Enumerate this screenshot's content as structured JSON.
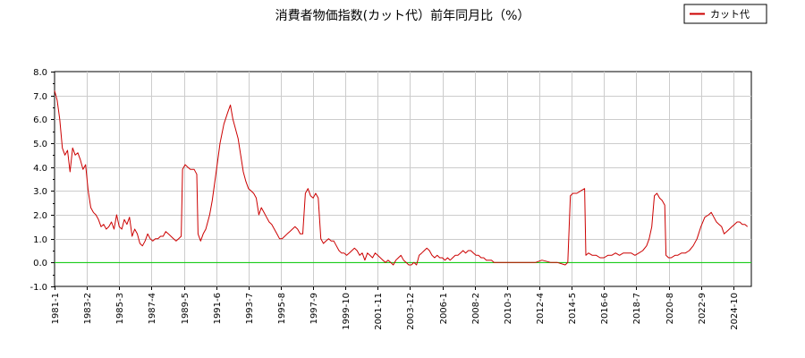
{
  "chart_data": {
    "type": "line",
    "title": "消費者物価指数(カット代）前年同月比（%）",
    "xlabel": "",
    "ylabel": "",
    "ylim": [
      -1.0,
      8.0
    ],
    "yticks": [
      "-1.0",
      "0.0",
      "1.0",
      "2.0",
      "3.0",
      "4.0",
      "5.0",
      "6.0",
      "7.0",
      "8.0"
    ],
    "xlim": [
      "1981-01",
      "2025-12"
    ],
    "xticks": [
      "1981-1",
      "1983-2",
      "1985-3",
      "1987-4",
      "1989-5",
      "1991-6",
      "1993-7",
      "1995-8",
      "1997-9",
      "1999-10",
      "2001-11",
      "2003-12",
      "2006-1",
      "2008-2",
      "2010-3",
      "2012-4",
      "2014-5",
      "2016-6",
      "2018-7",
      "2020-8",
      "2022-9",
      "2024-10"
    ],
    "grid": true,
    "legend_position": "top-right",
    "reference_line": {
      "y": 0.0,
      "color": "#00cc00"
    },
    "series": [
      {
        "name": "カット代",
        "color": "#cc0000",
        "points": [
          [
            "1981-01",
            7.2
          ],
          [
            "1981-03",
            6.8
          ],
          [
            "1981-05",
            6.0
          ],
          [
            "1981-07",
            4.8
          ],
          [
            "1981-09",
            4.5
          ],
          [
            "1981-11",
            4.7
          ],
          [
            "1982-01",
            3.8
          ],
          [
            "1982-03",
            4.8
          ],
          [
            "1982-05",
            4.5
          ],
          [
            "1982-07",
            4.6
          ],
          [
            "1982-09",
            4.3
          ],
          [
            "1982-11",
            3.9
          ],
          [
            "1983-01",
            4.1
          ],
          [
            "1983-03",
            3.0
          ],
          [
            "1983-05",
            2.3
          ],
          [
            "1983-07",
            2.1
          ],
          [
            "1983-09",
            2.0
          ],
          [
            "1983-11",
            1.8
          ],
          [
            "1984-01",
            1.5
          ],
          [
            "1984-03",
            1.6
          ],
          [
            "1984-05",
            1.4
          ],
          [
            "1984-07",
            1.5
          ],
          [
            "1984-09",
            1.7
          ],
          [
            "1984-11",
            1.4
          ],
          [
            "1985-01",
            2.0
          ],
          [
            "1985-03",
            1.5
          ],
          [
            "1985-05",
            1.4
          ],
          [
            "1985-07",
            1.8
          ],
          [
            "1985-09",
            1.6
          ],
          [
            "1985-11",
            1.9
          ],
          [
            "1986-01",
            1.1
          ],
          [
            "1986-03",
            1.4
          ],
          [
            "1986-05",
            1.2
          ],
          [
            "1986-07",
            0.8
          ],
          [
            "1986-09",
            0.7
          ],
          [
            "1986-11",
            0.9
          ],
          [
            "1987-01",
            1.2
          ],
          [
            "1987-03",
            1.0
          ],
          [
            "1987-05",
            0.9
          ],
          [
            "1987-07",
            1.0
          ],
          [
            "1987-09",
            1.0
          ],
          [
            "1987-11",
            1.1
          ],
          [
            "1988-01",
            1.1
          ],
          [
            "1988-03",
            1.3
          ],
          [
            "1988-05",
            1.2
          ],
          [
            "1988-07",
            1.1
          ],
          [
            "1988-09",
            1.0
          ],
          [
            "1988-11",
            0.9
          ],
          [
            "1989-01",
            1.0
          ],
          [
            "1989-03",
            1.1
          ],
          [
            "1989-04",
            3.9
          ],
          [
            "1989-06",
            4.1
          ],
          [
            "1989-08",
            4.0
          ],
          [
            "1989-10",
            3.9
          ],
          [
            "1990-01",
            3.9
          ],
          [
            "1990-03",
            3.7
          ],
          [
            "1990-04",
            1.2
          ],
          [
            "1990-06",
            0.9
          ],
          [
            "1990-08",
            1.2
          ],
          [
            "1990-10",
            1.4
          ],
          [
            "1991-01",
            2.0
          ],
          [
            "1991-03",
            2.6
          ],
          [
            "1991-06",
            3.8
          ],
          [
            "1991-09",
            5.0
          ],
          [
            "1991-12",
            5.8
          ],
          [
            "1992-03",
            6.3
          ],
          [
            "1992-05",
            6.6
          ],
          [
            "1992-07",
            6.0
          ],
          [
            "1992-09",
            5.6
          ],
          [
            "1992-11",
            5.2
          ],
          [
            "1993-01",
            4.5
          ],
          [
            "1993-03",
            3.8
          ],
          [
            "1993-05",
            3.4
          ],
          [
            "1993-07",
            3.1
          ],
          [
            "1993-09",
            3.0
          ],
          [
            "1993-11",
            2.9
          ],
          [
            "1994-01",
            2.7
          ],
          [
            "1994-03",
            2.0
          ],
          [
            "1994-05",
            2.3
          ],
          [
            "1994-07",
            2.1
          ],
          [
            "1994-09",
            1.9
          ],
          [
            "1994-11",
            1.7
          ],
          [
            "1995-01",
            1.6
          ],
          [
            "1995-03",
            1.4
          ],
          [
            "1995-05",
            1.2
          ],
          [
            "1995-07",
            1.0
          ],
          [
            "1995-09",
            1.0
          ],
          [
            "1995-11",
            1.1
          ],
          [
            "1996-01",
            1.2
          ],
          [
            "1996-03",
            1.3
          ],
          [
            "1996-05",
            1.4
          ],
          [
            "1996-07",
            1.5
          ],
          [
            "1996-09",
            1.4
          ],
          [
            "1996-11",
            1.2
          ],
          [
            "1997-01",
            1.2
          ],
          [
            "1997-03",
            2.9
          ],
          [
            "1997-05",
            3.1
          ],
          [
            "1997-07",
            2.8
          ],
          [
            "1997-09",
            2.7
          ],
          [
            "1997-11",
            2.9
          ],
          [
            "1998-01",
            2.7
          ],
          [
            "1998-03",
            1.0
          ],
          [
            "1998-05",
            0.8
          ],
          [
            "1998-07",
            0.9
          ],
          [
            "1998-09",
            1.0
          ],
          [
            "1998-11",
            0.9
          ],
          [
            "1999-01",
            0.9
          ],
          [
            "1999-03",
            0.7
          ],
          [
            "1999-05",
            0.5
          ],
          [
            "1999-07",
            0.4
          ],
          [
            "1999-09",
            0.4
          ],
          [
            "1999-11",
            0.3
          ],
          [
            "2000-01",
            0.4
          ],
          [
            "2000-03",
            0.5
          ],
          [
            "2000-05",
            0.6
          ],
          [
            "2000-07",
            0.5
          ],
          [
            "2000-09",
            0.3
          ],
          [
            "2000-11",
            0.4
          ],
          [
            "2001-01",
            0.1
          ],
          [
            "2001-03",
            0.4
          ],
          [
            "2001-05",
            0.3
          ],
          [
            "2001-07",
            0.2
          ],
          [
            "2001-09",
            0.4
          ],
          [
            "2001-11",
            0.3
          ],
          [
            "2002-01",
            0.2
          ],
          [
            "2002-03",
            0.1
          ],
          [
            "2002-05",
            0.0
          ],
          [
            "2002-07",
            0.1
          ],
          [
            "2002-09",
            0.0
          ],
          [
            "2002-11",
            -0.1
          ],
          [
            "2003-01",
            0.1
          ],
          [
            "2003-03",
            0.2
          ],
          [
            "2003-05",
            0.3
          ],
          [
            "2003-07",
            0.1
          ],
          [
            "2003-09",
            0.0
          ],
          [
            "2003-11",
            -0.1
          ],
          [
            "2004-01",
            -0.1
          ],
          [
            "2004-03",
            0.0
          ],
          [
            "2004-05",
            -0.1
          ],
          [
            "2004-07",
            0.3
          ],
          [
            "2004-09",
            0.4
          ],
          [
            "2004-11",
            0.5
          ],
          [
            "2005-01",
            0.6
          ],
          [
            "2005-03",
            0.5
          ],
          [
            "2005-05",
            0.3
          ],
          [
            "2005-07",
            0.2
          ],
          [
            "2005-09",
            0.3
          ],
          [
            "2005-11",
            0.2
          ],
          [
            "2006-01",
            0.2
          ],
          [
            "2006-03",
            0.1
          ],
          [
            "2006-05",
            0.2
          ],
          [
            "2006-07",
            0.1
          ],
          [
            "2006-09",
            0.2
          ],
          [
            "2006-11",
            0.3
          ],
          [
            "2007-01",
            0.3
          ],
          [
            "2007-03",
            0.4
          ],
          [
            "2007-05",
            0.5
          ],
          [
            "2007-07",
            0.4
          ],
          [
            "2007-09",
            0.5
          ],
          [
            "2007-11",
            0.5
          ],
          [
            "2008-01",
            0.4
          ],
          [
            "2008-03",
            0.3
          ],
          [
            "2008-05",
            0.3
          ],
          [
            "2008-07",
            0.2
          ],
          [
            "2008-09",
            0.2
          ],
          [
            "2008-11",
            0.1
          ],
          [
            "2009-01",
            0.1
          ],
          [
            "2009-03",
            0.1
          ],
          [
            "2009-05",
            0.0
          ],
          [
            "2009-07",
            0.0
          ],
          [
            "2009-09",
            0.0
          ],
          [
            "2009-11",
            0.0
          ],
          [
            "2010-01",
            0.0
          ],
          [
            "2010-06",
            0.0
          ],
          [
            "2011-01",
            0.0
          ],
          [
            "2011-06",
            0.0
          ],
          [
            "2012-01",
            0.0
          ],
          [
            "2012-06",
            0.1
          ],
          [
            "2013-01",
            0.0
          ],
          [
            "2013-06",
            0.0
          ],
          [
            "2013-12",
            -0.1
          ],
          [
            "2014-02",
            0.0
          ],
          [
            "2014-04",
            2.8
          ],
          [
            "2014-06",
            2.9
          ],
          [
            "2014-09",
            2.9
          ],
          [
            "2014-12",
            3.0
          ],
          [
            "2015-03",
            3.1
          ],
          [
            "2015-04",
            0.3
          ],
          [
            "2015-06",
            0.4
          ],
          [
            "2015-09",
            0.3
          ],
          [
            "2015-12",
            0.3
          ],
          [
            "2016-03",
            0.2
          ],
          [
            "2016-06",
            0.2
          ],
          [
            "2016-09",
            0.3
          ],
          [
            "2016-12",
            0.3
          ],
          [
            "2017-03",
            0.4
          ],
          [
            "2017-06",
            0.3
          ],
          [
            "2017-09",
            0.4
          ],
          [
            "2017-12",
            0.4
          ],
          [
            "2018-03",
            0.4
          ],
          [
            "2018-06",
            0.3
          ],
          [
            "2018-09",
            0.4
          ],
          [
            "2018-12",
            0.5
          ],
          [
            "2019-03",
            0.7
          ],
          [
            "2019-05",
            1.0
          ],
          [
            "2019-07",
            1.5
          ],
          [
            "2019-09",
            2.8
          ],
          [
            "2019-11",
            2.9
          ],
          [
            "2020-01",
            2.7
          ],
          [
            "2020-03",
            2.6
          ],
          [
            "2020-05",
            2.4
          ],
          [
            "2020-06",
            0.3
          ],
          [
            "2020-08",
            0.2
          ],
          [
            "2020-10",
            0.2
          ],
          [
            "2021-01",
            0.3
          ],
          [
            "2021-03",
            0.3
          ],
          [
            "2021-06",
            0.4
          ],
          [
            "2021-09",
            0.4
          ],
          [
            "2021-12",
            0.5
          ],
          [
            "2022-03",
            0.7
          ],
          [
            "2022-06",
            1.0
          ],
          [
            "2022-09",
            1.5
          ],
          [
            "2022-12",
            1.9
          ],
          [
            "2023-03",
            2.0
          ],
          [
            "2023-05",
            2.1
          ],
          [
            "2023-07",
            1.9
          ],
          [
            "2023-09",
            1.7
          ],
          [
            "2023-11",
            1.6
          ],
          [
            "2024-01",
            1.5
          ],
          [
            "2024-03",
            1.2
          ],
          [
            "2024-05",
            1.3
          ],
          [
            "2024-07",
            1.4
          ],
          [
            "2024-09",
            1.5
          ],
          [
            "2024-11",
            1.6
          ],
          [
            "2025-01",
            1.7
          ],
          [
            "2025-03",
            1.7
          ],
          [
            "2025-05",
            1.6
          ],
          [
            "2025-07",
            1.6
          ],
          [
            "2025-09",
            1.5
          ]
        ]
      }
    ]
  }
}
